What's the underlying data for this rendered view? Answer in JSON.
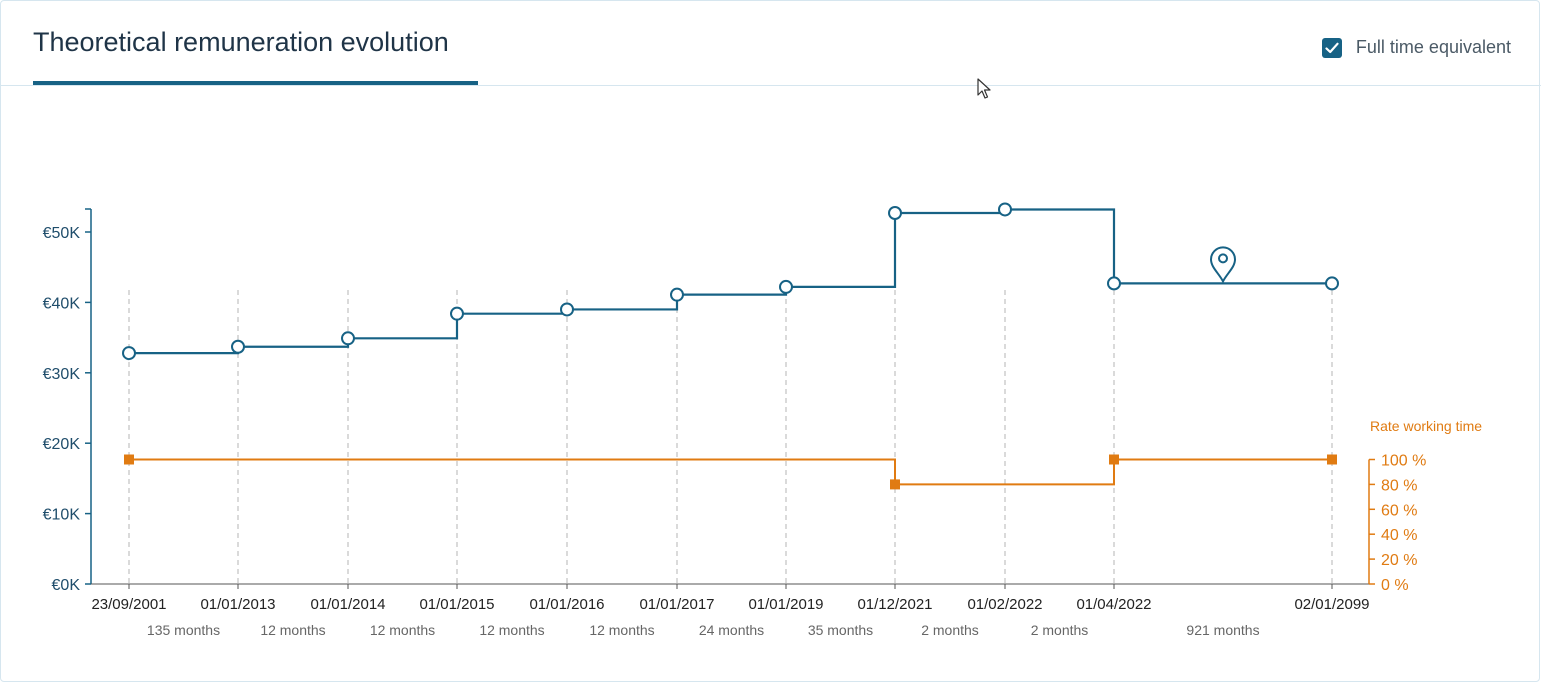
{
  "header": {
    "title": "Theoretical remuneration evolution",
    "fte_label": "Full time equivalent",
    "fte_checked": true
  },
  "colors": {
    "remuneration": "#176285",
    "rate": "#e07b12",
    "grid": "#b5b5b5"
  },
  "chart_data": {
    "type": "line",
    "step": true,
    "x_labels": [
      "23/09/2001",
      "01/01/2013",
      "01/01/2014",
      "01/01/2015",
      "01/01/2016",
      "01/01/2017",
      "01/01/2019",
      "01/12/2021",
      "01/02/2022",
      "01/04/2022",
      "02/01/2099"
    ],
    "durations": [
      "135 months",
      "12 months",
      "12 months",
      "12 months",
      "12 months",
      "24 months",
      "35 months",
      "2 months",
      "2 months",
      "921 months"
    ],
    "y_ticks": [
      "€0K",
      "€10K",
      "€20K",
      "€30K",
      "€40K",
      "€50K"
    ],
    "ylim": [
      0,
      53000
    ],
    "series": [
      {
        "axis": "left",
        "values": [
          32800,
          33700,
          34900,
          38400,
          39000,
          41100,
          42200,
          52700,
          53200,
          42700,
          42700
        ]
      },
      {
        "name": "Rate working time",
        "axis": "right",
        "unit": "%",
        "points": [
          {
            "x_index": 0,
            "value": 100
          },
          {
            "x_index": 7,
            "value": 80
          },
          {
            "x_index": 9,
            "value": 100
          },
          {
            "x_index": 10,
            "value": 100
          }
        ]
      }
    ],
    "right_ticks": [
      "0 %",
      "20 %",
      "40 %",
      "60 %",
      "80 %",
      "100 %"
    ],
    "right_ylim": [
      0,
      100
    ],
    "marker": {
      "icon": "location-pin-icon",
      "between": [
        9,
        10
      ]
    },
    "grid": "vertical-dashed"
  }
}
